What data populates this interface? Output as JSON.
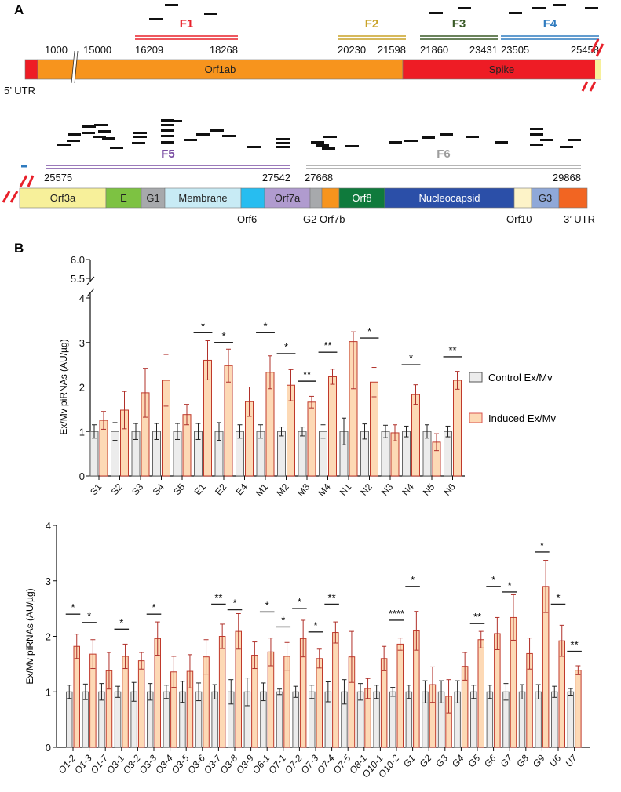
{
  "panelA": {
    "label": "A",
    "row1": {
      "segments": [
        {
          "name": "",
          "color": "#ee1c25"
        },
        {
          "name": "Orf1ab",
          "color": "#f7941d"
        },
        {
          "name": "Spike",
          "color": "#ee1c25"
        }
      ],
      "utr_label": "5’ UTR",
      "break_numbers": [
        "1000",
        "15000"
      ],
      "fragments": [
        {
          "name": "F1",
          "color": "#e8202a",
          "start": "16209",
          "end": "18268"
        },
        {
          "name": "F2",
          "color": "#c9a227",
          "start": "20230",
          "end": "21598"
        },
        {
          "name": "F3",
          "color": "#3a5a27",
          "start": "21860",
          "end": "23431"
        },
        {
          "name": "F4",
          "color": "#2f7bbf",
          "start": "23505",
          "end": "25458"
        }
      ]
    },
    "row2": {
      "segments": [
        {
          "name": "Orf3a",
          "color": "#f7f09a"
        },
        {
          "name": "E",
          "color": "#7dc242"
        },
        {
          "name": "G1",
          "color": "#a7a9ac"
        },
        {
          "name": "Membrane",
          "color": "#c8ebf5"
        },
        {
          "name": "",
          "color": "#27bdf0"
        },
        {
          "name": "Orf7a",
          "color": "#b09bcf"
        },
        {
          "name": "",
          "color": "#a7a9ac"
        },
        {
          "name": "",
          "color": "#f7941d"
        },
        {
          "name": "Orf8",
          "color": "#0f7a3c"
        },
        {
          "name": "Nucleocapsid",
          "color": "#2b4fa8"
        },
        {
          "name": "",
          "color": "#fdf3c8"
        },
        {
          "name": "G3",
          "color": "#8fa8d8"
        },
        {
          "name": "",
          "color": "#f26522"
        }
      ],
      "below_labels": [
        "Orf6",
        "G2 Orf7b",
        "Orf10",
        "3’ UTR"
      ],
      "fragments": [
        {
          "name": "F5",
          "color": "#7a4ea3",
          "start": "25575",
          "end": "27542"
        },
        {
          "name": "F6",
          "color": "#9d9d9d",
          "start": "27668",
          "end": "29868"
        }
      ]
    }
  },
  "panelB": {
    "label": "B"
  },
  "legend": {
    "items": [
      {
        "label": "Control Ex/Mv",
        "fill": "#ececec",
        "stroke": "#555555"
      },
      {
        "label": "Induced Ex/Mv",
        "fill": "#fdd9b5",
        "stroke": "#d9534f"
      }
    ]
  },
  "chart_data": [
    {
      "type": "bar",
      "ylabel": "Ex/Mv piRNAs (AU/µg)",
      "ylim": [
        0,
        6.0
      ],
      "axis_break": [
        4,
        5.5
      ],
      "yticks": [
        "0",
        "1",
        "2",
        "3",
        "4",
        "5.5",
        "6.0"
      ],
      "categories": [
        "S1",
        "S2",
        "S3",
        "S4",
        "S5",
        "E1",
        "E2",
        "E4",
        "M1",
        "M2",
        "M3",
        "M4",
        "N1",
        "N2",
        "N3",
        "N4",
        "N5",
        "N6"
      ],
      "series": [
        {
          "name": "Control Ex/Mv",
          "values": [
            1,
            1,
            1,
            1,
            1,
            1,
            1,
            1,
            1,
            1,
            1,
            1,
            1,
            1,
            1,
            1,
            1,
            1
          ],
          "errors": [
            0.15,
            0.2,
            0.18,
            0.18,
            0.18,
            0.18,
            0.2,
            0.15,
            0.15,
            0.1,
            0.1,
            0.15,
            0.3,
            0.17,
            0.14,
            0.12,
            0.15,
            0.12
          ]
        },
        {
          "name": "Induced Ex/Mv",
          "values": [
            1.25,
            1.48,
            1.87,
            2.15,
            1.38,
            2.6,
            2.48,
            1.67,
            2.33,
            2.04,
            1.66,
            2.23,
            3.02,
            2.11,
            0.97,
            1.83,
            0.76,
            2.15
          ],
          "errors": [
            0.2,
            0.42,
            0.55,
            0.58,
            0.23,
            0.44,
            0.37,
            0.33,
            0.37,
            0.35,
            0.13,
            0.17,
            1.06,
            0.33,
            0.18,
            0.22,
            0.19,
            0.2
          ]
        }
      ],
      "significance": [
        {
          "category": "E1",
          "label": "*",
          "level": 3.22
        },
        {
          "category": "E2",
          "label": "*",
          "level": 3.0
        },
        {
          "category": "M1",
          "label": "*",
          "level": 3.22
        },
        {
          "category": "M2",
          "label": "*",
          "level": 2.75
        },
        {
          "category": "M3",
          "label": "**",
          "level": 2.13
        },
        {
          "category": "M4",
          "label": "**",
          "level": 2.78
        },
        {
          "category": "N2",
          "label": "*",
          "level": 3.1
        },
        {
          "category": "N4",
          "label": "*",
          "level": 2.5
        },
        {
          "category": "N6",
          "label": "**",
          "level": 2.68
        }
      ]
    },
    {
      "type": "bar",
      "ylabel": "Ex/Mv piRNAs (AU/µg)",
      "ylim": [
        0,
        4
      ],
      "yticks": [
        "0",
        "1",
        "2",
        "3",
        "4"
      ],
      "categories": [
        "O1-2",
        "O1-3",
        "O1-7",
        "O3-1",
        "O3-2",
        "O3-3",
        "O3-4",
        "O3-5",
        "O3-6",
        "O3-7",
        "O3-8",
        "O3-9",
        "O6-1",
        "O7-1",
        "O7-2",
        "O7-3",
        "O7-4",
        "O7-5",
        "O8-1",
        "O10-1",
        "O10-2",
        "G1",
        "G2",
        "G3",
        "G4",
        "G5",
        "G6",
        "G7",
        "G8",
        "G9",
        "U6",
        "U7"
      ],
      "series": [
        {
          "name": "Control Ex/Mv",
          "values": [
            1,
            1,
            1,
            1,
            1,
            1,
            1,
            1,
            1,
            1,
            1,
            1,
            1,
            1,
            1,
            1,
            1,
            1,
            1,
            1,
            1,
            1,
            1,
            1,
            1,
            1,
            1,
            1,
            1,
            1,
            1,
            1
          ],
          "errors": [
            0.12,
            0.14,
            0.15,
            0.1,
            0.17,
            0.15,
            0.12,
            0.19,
            0.16,
            0.13,
            0.22,
            0.25,
            0.16,
            0.05,
            0.1,
            0.12,
            0.18,
            0.22,
            0.15,
            0.12,
            0.08,
            0.12,
            0.2,
            0.2,
            0.2,
            0.12,
            0.12,
            0.15,
            0.13,
            0.13,
            0.1,
            0.06
          ]
        },
        {
          "name": "Induced Ex/Mv",
          "values": [
            1.82,
            1.68,
            1.38,
            1.64,
            1.56,
            1.96,
            1.36,
            1.37,
            1.63,
            2.0,
            2.09,
            1.66,
            1.72,
            1.64,
            1.96,
            1.6,
            2.07,
            1.63,
            1.06,
            1.6,
            1.86,
            2.1,
            1.13,
            0.92,
            1.46,
            1.94,
            2.05,
            2.34,
            1.69,
            2.9,
            1.92,
            1.39
          ],
          "errors": [
            0.22,
            0.26,
            0.33,
            0.22,
            0.15,
            0.3,
            0.28,
            0.3,
            0.31,
            0.22,
            0.32,
            0.24,
            0.25,
            0.25,
            0.33,
            0.17,
            0.19,
            0.46,
            0.18,
            0.22,
            0.11,
            0.35,
            0.32,
            0.3,
            0.25,
            0.15,
            0.29,
            0.41,
            0.28,
            0.47,
            0.28,
            0.08
          ]
        }
      ],
      "significance": [
        {
          "category": "O1-2",
          "label": "*",
          "level": 2.4
        },
        {
          "category": "O1-3",
          "label": "*",
          "level": 2.25
        },
        {
          "category": "O3-1",
          "label": "*",
          "level": 2.13
        },
        {
          "category": "O3-3",
          "label": "*",
          "level": 2.4
        },
        {
          "category": "O3-7",
          "label": "**",
          "level": 2.58
        },
        {
          "category": "O3-8",
          "label": "*",
          "level": 2.48
        },
        {
          "category": "O6-1",
          "label": "*",
          "level": 2.44
        },
        {
          "category": "O7-1",
          "label": "*",
          "level": 2.17
        },
        {
          "category": "O7-2",
          "label": "*",
          "level": 2.5
        },
        {
          "category": "O7-3",
          "label": "*",
          "level": 2.08
        },
        {
          "category": "O7-4",
          "label": "**",
          "level": 2.58
        },
        {
          "category": "O10-2",
          "label": "****",
          "level": 2.29
        },
        {
          "category": "G1",
          "label": "*",
          "level": 2.9
        },
        {
          "category": "G5",
          "label": "**",
          "level": 2.23
        },
        {
          "category": "G6",
          "label": "*",
          "level": 2.9
        },
        {
          "category": "G7",
          "label": "*",
          "level": 2.8
        },
        {
          "category": "G9",
          "label": "*",
          "level": 3.52
        },
        {
          "category": "U6",
          "label": "*",
          "level": 2.58
        },
        {
          "category": "U7",
          "label": "**",
          "level": 1.73
        }
      ]
    }
  ]
}
